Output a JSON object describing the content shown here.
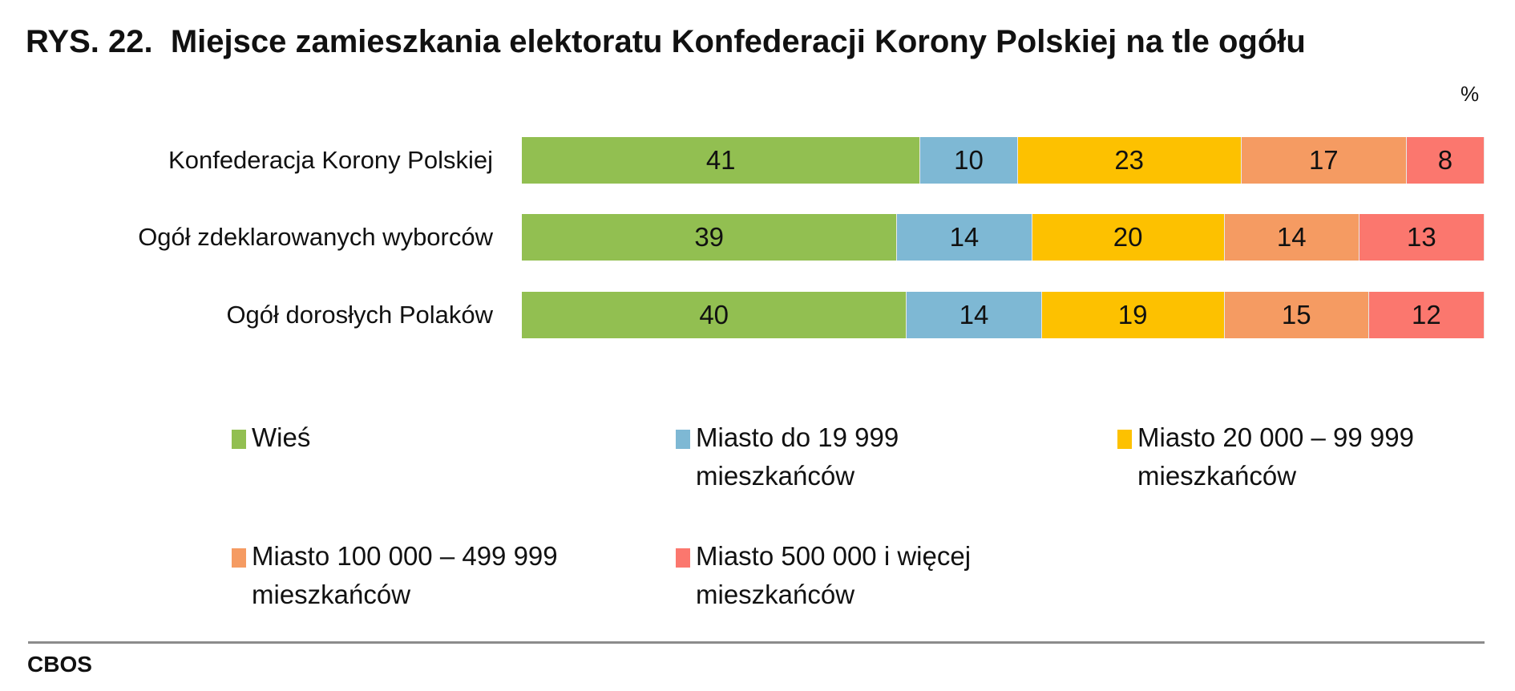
{
  "title": "RYS. 22.  Miejsce zamieszkania elektoratu Konfederacji Korony Polskiej na tle ogółu",
  "unit": "%",
  "source": "CBOS",
  "chart_data": {
    "type": "bar",
    "orientation": "horizontal",
    "stacked": true,
    "title": "RYS. 22.  Miejsce zamieszkania elektoratu Konfederacji Korony Polskiej na tle ogółu",
    "unit": "%",
    "categories": [
      "Konfederacja Korony Polskiej",
      "Ogół zdeklarowanych wyborców",
      "Ogół dorosłych Polaków"
    ],
    "series": [
      {
        "name": "Wieś",
        "color": "#92bf51",
        "values": [
          41,
          39,
          40
        ]
      },
      {
        "name": "Miasto do 19 999 mieszkańców",
        "color": "#7eb8d4",
        "values": [
          10,
          14,
          14
        ]
      },
      {
        "name": "Miasto 20 000 – 99 999 mieszkańców",
        "color": "#fdc100",
        "values": [
          23,
          20,
          19
        ]
      },
      {
        "name": "Miasto 100 000 – 499 999 mieszkańców",
        "color": "#f59b62",
        "values": [
          17,
          14,
          15
        ]
      },
      {
        "name": "Miasto 500 000 i więcej mieszkańców",
        "color": "#fb776e",
        "values": [
          8,
          13,
          12
        ]
      }
    ],
    "legend": "bottom",
    "grid": false
  }
}
